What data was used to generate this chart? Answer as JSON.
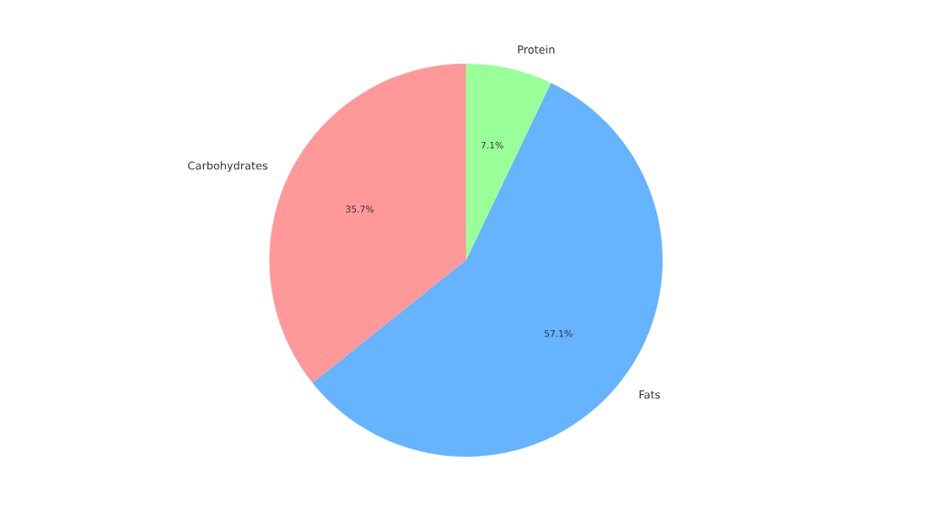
{
  "chart_data": {
    "type": "pie",
    "categories": [
      "Carbohydrates",
      "Fats",
      "Protein"
    ],
    "values": [
      35.7,
      57.1,
      7.1
    ],
    "colors": [
      "#ff9999",
      "#66b3ff",
      "#99ff99"
    ],
    "value_labels": [
      "35.7%",
      "57.1%",
      "7.1%"
    ]
  }
}
